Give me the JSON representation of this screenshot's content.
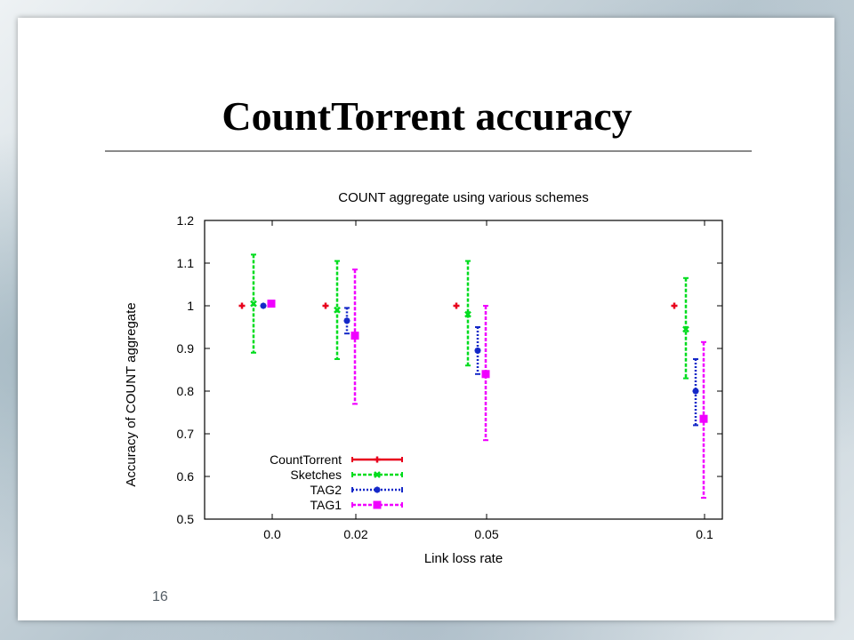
{
  "slide": {
    "title": "CountTorrent accuracy",
    "page_number": "16"
  },
  "chart_data": {
    "type": "scatter",
    "subtype": "errorbar",
    "title": "COUNT aggregate using various schemes",
    "xlabel": "Link loss rate",
    "ylabel": "Accuracy of COUNT aggregate",
    "categories": [
      "0.0",
      "0.02",
      "0.05",
      "0.1"
    ],
    "ylim": [
      0.5,
      1.2
    ],
    "yticks": [
      "0.5",
      "0.6",
      "0.7",
      "0.8",
      "0.9",
      "1",
      "1.1",
      "1.2"
    ],
    "legend_position": "bottom-left",
    "grid": false,
    "series": [
      {
        "name": "CountTorrent",
        "color": "#e8001c",
        "dash": "solid",
        "marker": "plus",
        "values": [
          1.0,
          1.0,
          1.0,
          1.0
        ],
        "low": [
          1.0,
          1.0,
          1.0,
          1.0
        ],
        "high": [
          1.0,
          1.0,
          1.0,
          1.0
        ]
      },
      {
        "name": "Sketches",
        "color": "#00dc1e",
        "dash": "dashed",
        "marker": "x",
        "values": [
          1.005,
          0.99,
          0.98,
          0.945
        ],
        "low": [
          0.89,
          0.875,
          0.86,
          0.83
        ],
        "high": [
          1.12,
          1.105,
          1.105,
          1.065
        ]
      },
      {
        "name": "TAG2",
        "color": "#1428c8",
        "dash": "dotted",
        "marker": "star",
        "values": [
          1.0,
          0.965,
          0.895,
          0.8
        ],
        "low": [
          1.0,
          0.935,
          0.84,
          0.72
        ],
        "high": [
          1.0,
          0.995,
          0.95,
          0.875
        ]
      },
      {
        "name": "TAG1",
        "color": "#f000ff",
        "dash": "dashed",
        "marker": "square",
        "values": [
          1.005,
          0.93,
          0.84,
          0.735
        ],
        "low": [
          1.005,
          0.77,
          0.685,
          0.55
        ],
        "high": [
          1.005,
          1.085,
          1.0,
          0.915
        ]
      }
    ]
  }
}
